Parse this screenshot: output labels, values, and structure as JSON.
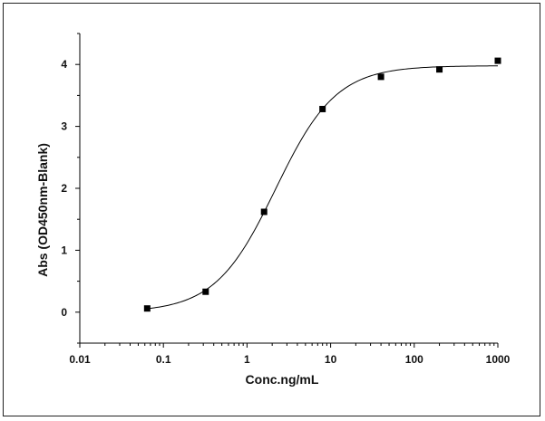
{
  "chart_data": {
    "type": "scatter",
    "title": "",
    "xlabel": "Conc.ng/mL",
    "ylabel": "Abs (OD450nm-Blank)",
    "x_scale": "log",
    "xlim": [
      0.01,
      1000
    ],
    "ylim": [
      -0.5,
      4.5
    ],
    "x_ticks": [
      {
        "value": 0.01,
        "label": "0.01"
      },
      {
        "value": 0.1,
        "label": "0.1"
      },
      {
        "value": 1,
        "label": "1"
      },
      {
        "value": 10,
        "label": "10"
      },
      {
        "value": 100,
        "label": "100"
      },
      {
        "value": 1000,
        "label": "1000"
      }
    ],
    "y_ticks": [
      {
        "value": 0,
        "label": "0"
      },
      {
        "value": 1,
        "label": "1"
      },
      {
        "value": 2,
        "label": "2"
      },
      {
        "value": 3,
        "label": "3"
      },
      {
        "value": 4,
        "label": "4"
      }
    ],
    "grid": false,
    "marker": "square",
    "series": [
      {
        "points": [
          {
            "x": 0.064,
            "y": 0.06
          },
          {
            "x": 0.32,
            "y": 0.33
          },
          {
            "x": 1.6,
            "y": 1.62
          },
          {
            "x": 8,
            "y": 3.28
          },
          {
            "x": 40,
            "y": 3.8
          },
          {
            "x": 200,
            "y": 3.92
          },
          {
            "x": 1000,
            "y": 4.06
          }
        ]
      }
    ],
    "fit": {
      "type": "4PL",
      "bottom": 0.0,
      "top": 3.98,
      "ec50": 2.2,
      "hill": 1.2,
      "x_from": 0.064,
      "x_to": 1000
    },
    "colors": {
      "marker": "#000000",
      "line": "#000000",
      "axis": "#000000"
    }
  }
}
